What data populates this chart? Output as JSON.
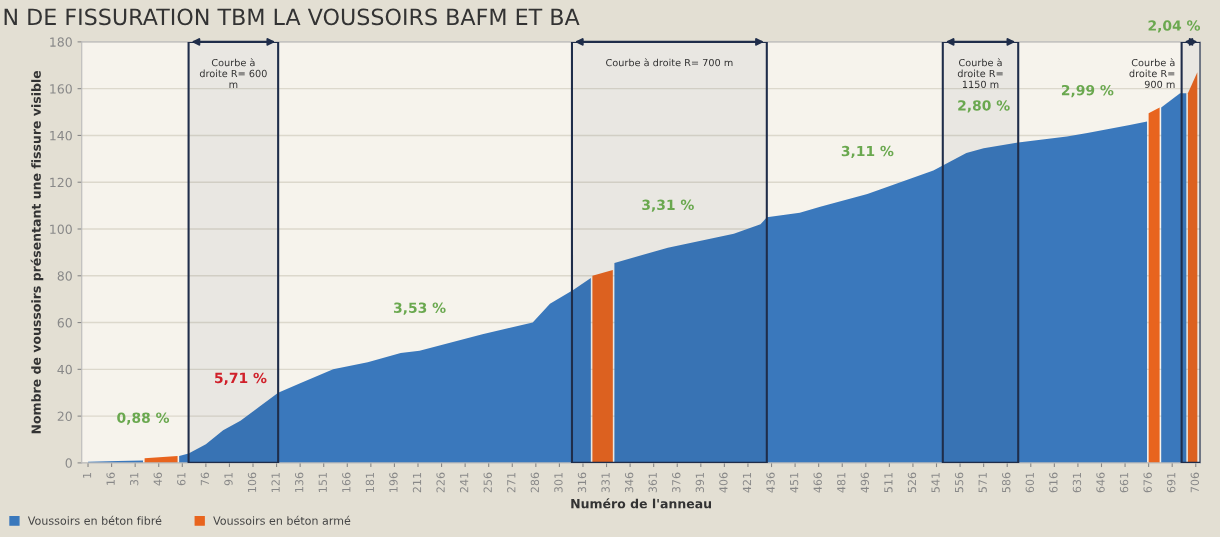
{
  "chart_data": {
    "type": "area",
    "title": "N DE FISSURATION TBM LA VOUSSOIRS BAFM ET BA",
    "xlabel": "Numéro de l'anneau",
    "ylabel": "Nombre de voussoirs présentant une fissure visible",
    "xlim": [
      -3,
      709
    ],
    "xticks": [
      1,
      16,
      31,
      46,
      61,
      76,
      91,
      106,
      121,
      136,
      151,
      166,
      181,
      196,
      211,
      226,
      241,
      256,
      271,
      286,
      301,
      316,
      331,
      346,
      361,
      376,
      391,
      406,
      421,
      436,
      451,
      466,
      481,
      496,
      511,
      526,
      541,
      556,
      571,
      586,
      601,
      616,
      631,
      646,
      661,
      676,
      691,
      706
    ],
    "ylim": [
      0,
      180
    ],
    "yticks": [
      0,
      20,
      40,
      60,
      80,
      100,
      120,
      140,
      160,
      180
    ],
    "grid": "y",
    "legend": "bottom left",
    "series": [
      {
        "name": "Voussoirs en béton fibré",
        "color": "#3a78bc",
        "x": [
          1,
          20,
          36,
          37,
          58,
          59,
          65,
          76,
          87,
          98,
          110,
          122,
          136,
          157,
          179,
          200,
          212,
          252,
          284,
          295,
          310,
          321,
          322,
          335,
          336,
          370,
          412,
          429,
          433,
          454,
          467,
          497,
          539,
          560,
          571,
          593,
          624,
          637,
          664,
          675,
          676,
          683,
          684,
          696,
          700
        ],
        "values": [
          0.5,
          0.8,
          1,
          null,
          null,
          3,
          4,
          8,
          14,
          18,
          24,
          30,
          34,
          40,
          43,
          47,
          48,
          55,
          60,
          68,
          74,
          79,
          null,
          null,
          85.5,
          92,
          98,
          102,
          105,
          107,
          109.5,
          115,
          125,
          132.5,
          134.5,
          137,
          139.5,
          141,
          144.5,
          146,
          null,
          null,
          152,
          158,
          158
        ]
      },
      {
        "name": "Voussoirs en béton armé",
        "color": "#e8641e",
        "x": [
          37,
          58,
          59,
          322,
          335,
          336,
          676,
          683,
          684,
          701,
          707
        ],
        "values": [
          2,
          3,
          null,
          80,
          82.5,
          null,
          149.5,
          152,
          null,
          158,
          167
        ]
      }
    ],
    "bands": [
      {
        "axis": "x",
        "from": 65,
        "to": 122,
        "label": "Courbe à droite R= 600 m",
        "color": "#1f2d4a"
      },
      {
        "axis": "x",
        "from": 309,
        "to": 433,
        "label": "Courbe à droite R= 700 m",
        "color": "#1f2d4a"
      },
      {
        "axis": "x",
        "from": 545,
        "to": 593,
        "label": "Courbe à droite R= 1150 m",
        "color": "#1f2d4a"
      },
      {
        "axis": "x",
        "from": 697,
        "to": 709,
        "label": "Courbe à droite R= 900 m",
        "color": "#1f2d4a"
      }
    ],
    "annotations": [
      {
        "text": "0,88 %",
        "x": 36,
        "y": 1
      },
      {
        "text": "5,71 %",
        "x": 98,
        "y": 18
      },
      {
        "text": "3,53 %",
        "x": 212,
        "y": 48
      },
      {
        "text": "3,31 %",
        "x": 370,
        "y": 92
      },
      {
        "text": "3,11 %",
        "x": 497,
        "y": 115
      },
      {
        "text": "2,80 %",
        "x": 571,
        "y": 134.5
      },
      {
        "text": "2,99 %",
        "x": 637,
        "y": 141
      },
      "2,04 %"
    ]
  }
}
